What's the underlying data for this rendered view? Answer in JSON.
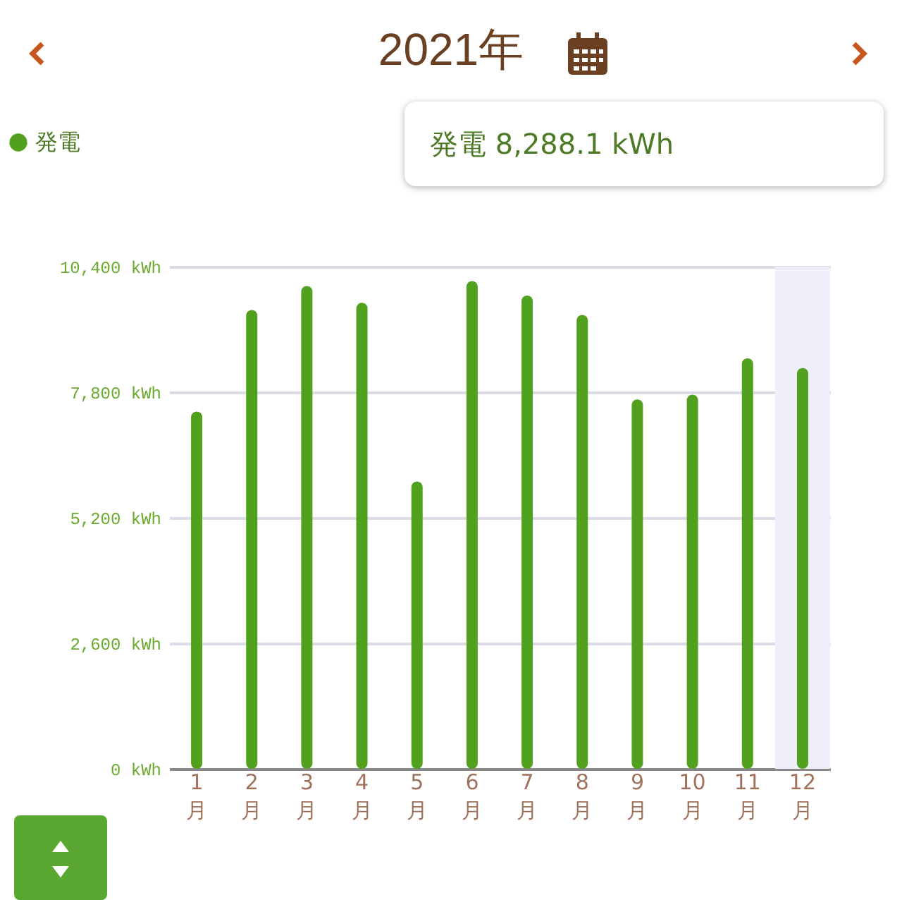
{
  "chart_data": {
    "type": "bar",
    "title": "2021年",
    "categories": [
      "1月",
      "2月",
      "3月",
      "4月",
      "5月",
      "6月",
      "7月",
      "8月",
      "9月",
      "10月",
      "11月",
      "12月"
    ],
    "series": [
      {
        "name": "発電",
        "color": "#52a11e",
        "values": [
          7400,
          9500,
          10000,
          9650,
          5950,
          10100,
          9800,
          9400,
          7650,
          7750,
          8500,
          8300
        ]
      }
    ],
    "ylim": [
      0,
      10400
    ],
    "yticks": [
      {
        "value": 0,
        "label": "0 kWh"
      },
      {
        "value": 2600,
        "label": "2,600 kWh"
      },
      {
        "value": 5200,
        "label": "5,200 kWh"
      },
      {
        "value": 7800,
        "label": "7,800 kWh"
      },
      {
        "value": 10400,
        "label": "10,400 kWh"
      }
    ],
    "grid": "y",
    "legend": "top left",
    "bands": [
      {
        "axis": "x",
        "from": "12月",
        "to": "12月",
        "color": "#eeeffa"
      }
    ],
    "annotations": [
      "発電 8,288.1 kWh"
    ]
  }
}
